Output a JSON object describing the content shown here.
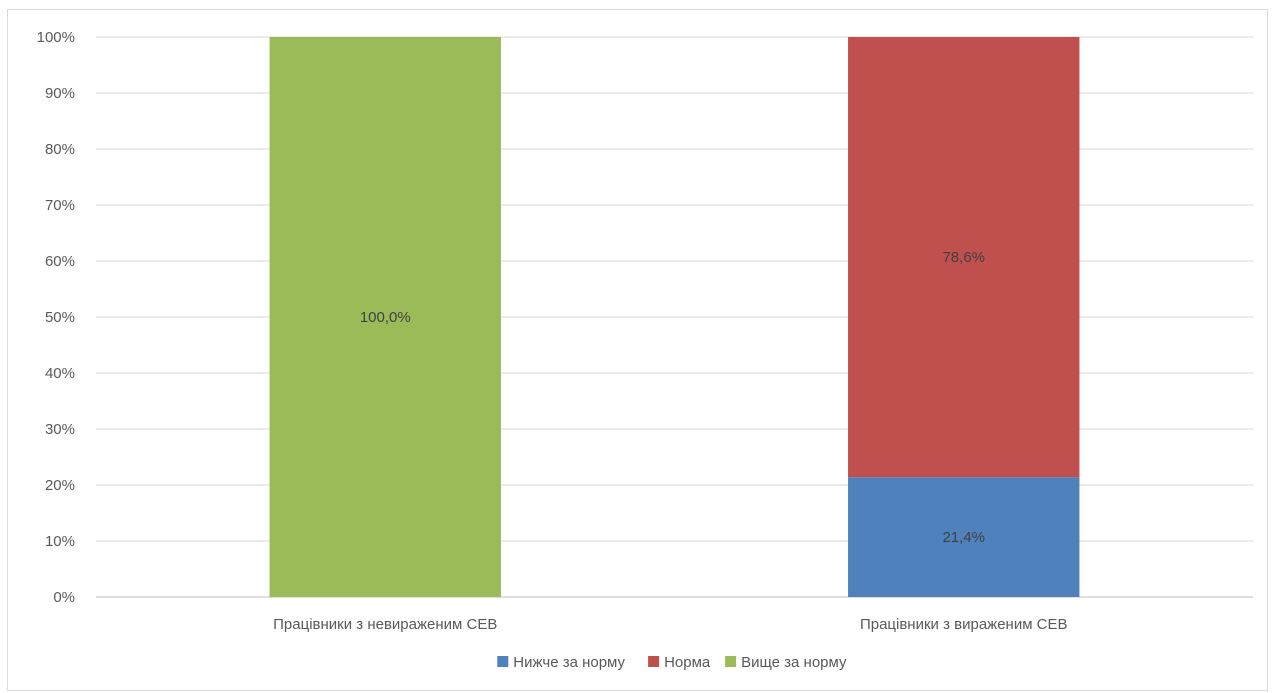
{
  "chart_data": {
    "type": "bar",
    "stacked": true,
    "categories": [
      "Працівники з невираженим СЕВ",
      "Працівники з вираженим СЕВ"
    ],
    "series": [
      {
        "name": "Нижче за норму",
        "color": "#4f81bd",
        "values": [
          0,
          21.4
        ],
        "labels": [
          "",
          "21,4%"
        ]
      },
      {
        "name": "Норма",
        "color": "#c0504d",
        "values": [
          0,
          78.6
        ],
        "labels": [
          "",
          "78,6%"
        ]
      },
      {
        "name": "Вище за норму",
        "color": "#9bbb59",
        "values": [
          100,
          0
        ],
        "labels": [
          "100,0%",
          ""
        ]
      }
    ],
    "ylim": [
      0,
      100
    ],
    "yticks": [
      "0%",
      "10%",
      "20%",
      "30%",
      "40%",
      "50%",
      "60%",
      "70%",
      "80%",
      "90%",
      "100%"
    ],
    "grid": true,
    "legend": "bottom",
    "title": "",
    "xlabel": "",
    "ylabel": ""
  }
}
